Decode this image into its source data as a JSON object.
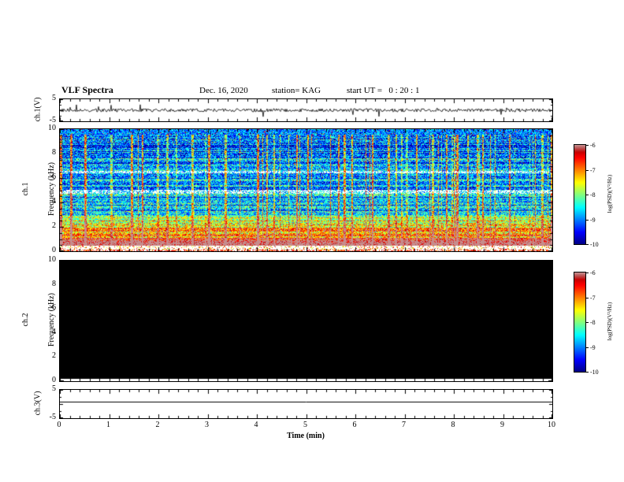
{
  "header": {
    "title": "VLF Spectra",
    "date": "Dec. 16, 2020",
    "station": "station= KAG",
    "start_ut": "start UT =   0 : 20 : 1"
  },
  "axes": {
    "time_label": "Time (min)",
    "time_ticks": [
      "0",
      "1",
      "2",
      "3",
      "4",
      "5",
      "6",
      "7",
      "8",
      "9",
      "10"
    ],
    "freq_ticks": [
      "10",
      "8",
      "6",
      "4",
      "2",
      "0"
    ],
    "volt_hi": "5",
    "volt_lo": "-5"
  },
  "panels": {
    "ch1_wave": {
      "label": "ch.1(V)"
    },
    "ch1_spec": {
      "l1": "ch.1",
      "l2": "Frequency (kHz)"
    },
    "ch2_spec": {
      "l1": "ch.2",
      "l2": "Frequency (kHz)"
    },
    "ch3_wave": {
      "label": "ch.3(V)"
    }
  },
  "colorbar": {
    "label": "log(PSD)(V²/Hz)",
    "ticks": [
      "-6",
      "-7",
      "-8",
      "-9",
      "-10"
    ],
    "zlim": [
      -10,
      -6
    ],
    "scale_colors": {
      "top": "#ff9a9a",
      "high": "#ff0000",
      "mid": "#ffff00",
      "green": "#00c000",
      "cyan": "#00ffff",
      "low": "#0000ff",
      "bottom": "#000060"
    }
  },
  "chart_data": [
    {
      "type": "line",
      "panel": "ch.1(V)",
      "xlim": [
        0,
        10
      ],
      "ylim": [
        -5,
        5
      ],
      "baseline": 0,
      "noise_amplitude": 0.8,
      "description": "Dense noisy voltage waveform centered on 0 V with occasional spikes of roughly ±2 V across the full 10 minutes",
      "style": {
        "seed": 77
      }
    },
    {
      "type": "heatmap",
      "panel": "ch.1 Frequency (kHz)",
      "xlim": [
        0,
        10
      ],
      "ylim": [
        0,
        10
      ],
      "zlabel": "log(PSD)(V²/Hz)",
      "zlim": [
        -10,
        -6
      ],
      "description": "Dense VLF spectrogram: strong red/orange power band below ~3 kHz, many vertical broadband impulsive streaks spanning 0.5-9.5 kHz, green/yellow background 3-9 kHz, dark blue band with speckles near 9.6-10 kHz, pale horizontal gaps near 4.9 and 6.5 kHz, thin bright line near 0.1 kHz",
      "style": {
        "seed": 1234,
        "streak_density": 0.1
      }
    },
    {
      "type": "heatmap",
      "panel": "ch.2 Frequency (kHz)",
      "xlim": [
        0,
        10
      ],
      "ylim": [
        0,
        10
      ],
      "zlabel": "log(PSD)(V²/Hz)",
      "zlim": [
        -10,
        -6
      ],
      "description": "No data recorded: panel is uniformly black over the full 0-10 kHz, 0-10 min range"
    },
    {
      "type": "line",
      "panel": "ch.3(V)",
      "xlim": [
        0,
        10
      ],
      "ylim": [
        -5,
        5
      ],
      "baseline": 0.8,
      "noise_amplitude": 0,
      "description": "Perfectly flat constant line slightly above 0 V (about +0.8 V) for the whole record"
    }
  ]
}
